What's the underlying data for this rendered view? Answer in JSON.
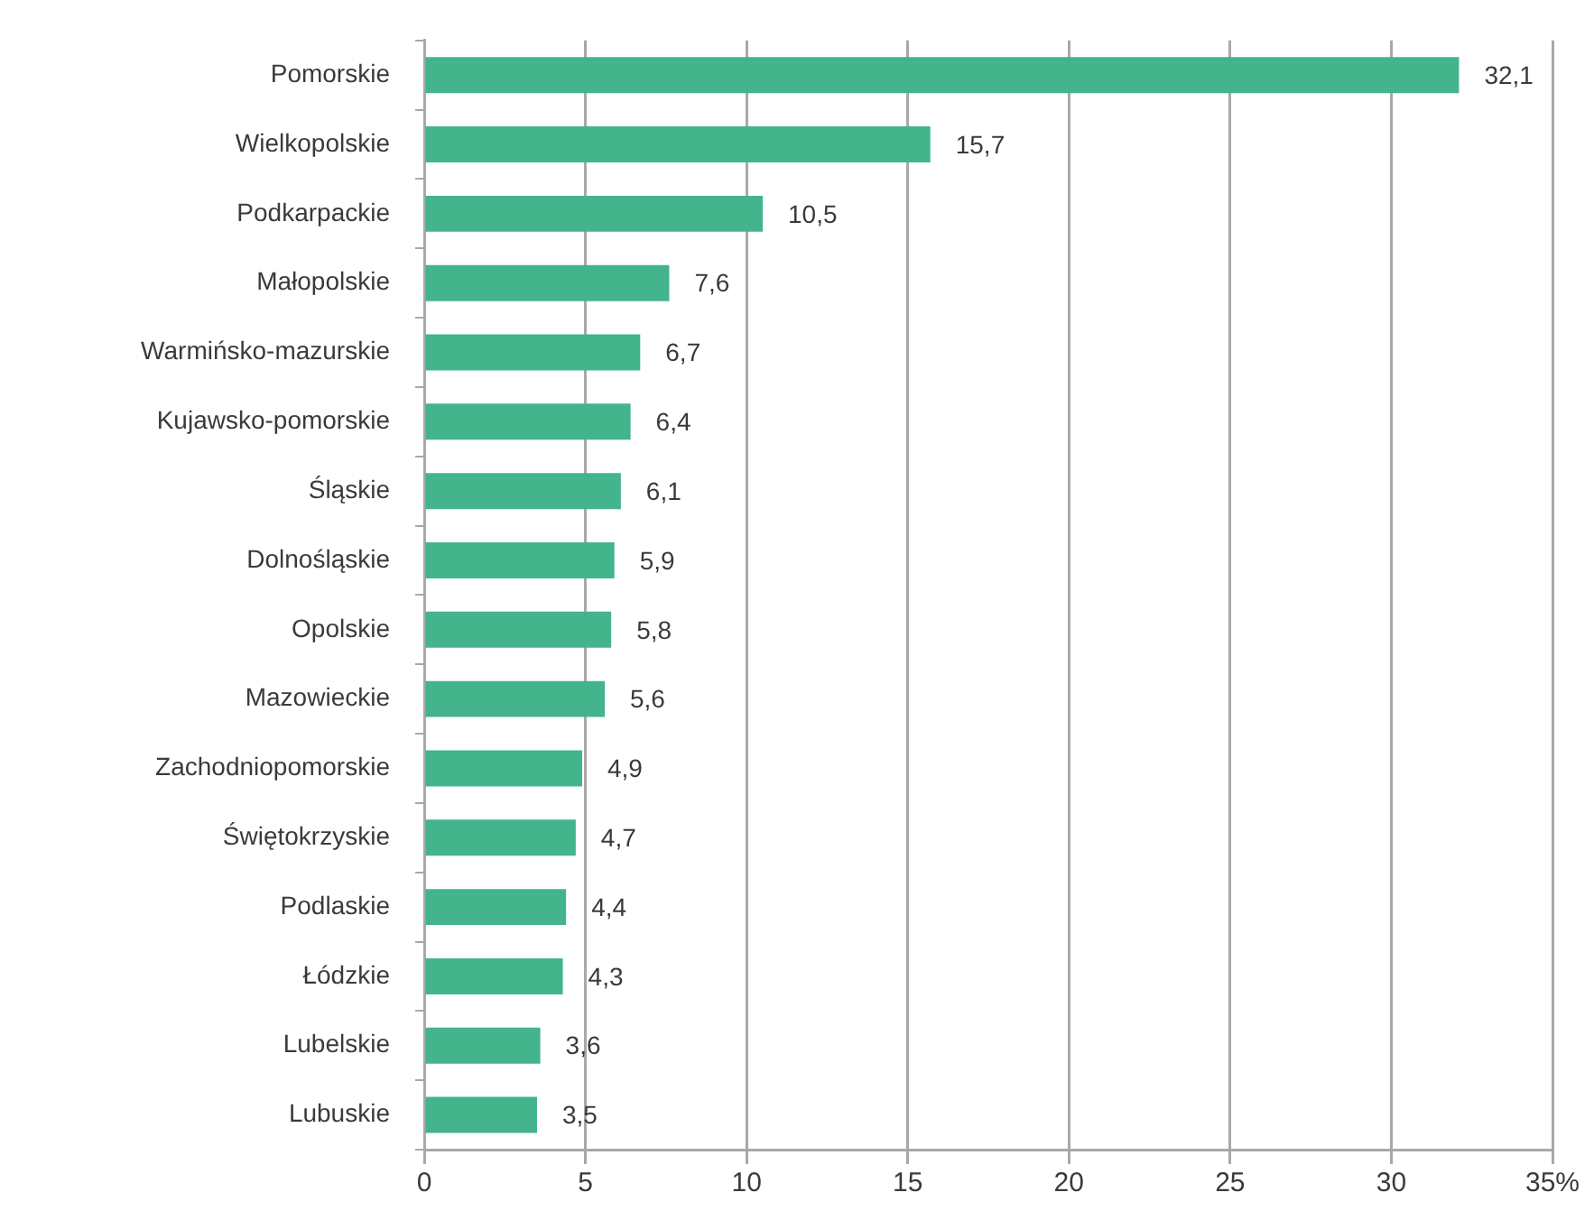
{
  "chart_data": {
    "type": "bar",
    "orientation": "horizontal",
    "categories": [
      "Pomorskie",
      "Wielkopolskie",
      "Podkarpackie",
      "Małopolskie",
      "Warmińsko-mazurskie",
      "Kujawsko-pomorskie",
      "Śląskie",
      "Dolnośląskie",
      "Opolskie",
      "Mazowieckie",
      "Zachodniopomorskie",
      "Świętokrzyskie",
      "Podlaskie",
      "Łódzkie",
      "Lubelskie",
      "Lubuskie"
    ],
    "values": [
      32.1,
      15.7,
      10.5,
      7.6,
      6.7,
      6.4,
      6.1,
      5.9,
      5.8,
      5.6,
      4.9,
      4.7,
      4.4,
      4.3,
      3.6,
      3.5
    ],
    "value_labels": [
      "32,1",
      "15,7",
      "10,5",
      "7,6",
      "6,7",
      "6,4",
      "6,1",
      "5,9",
      "5,8",
      "5,6",
      "4,9",
      "4,7",
      "4,4",
      "4,3",
      "3,6",
      "3,5"
    ],
    "color": "#43b48c",
    "xlim": [
      0,
      35
    ],
    "xticks": [
      0,
      5,
      10,
      15,
      20,
      25,
      30,
      {
        "value": 35,
        "label": "35%"
      }
    ],
    "grid": "x"
  }
}
